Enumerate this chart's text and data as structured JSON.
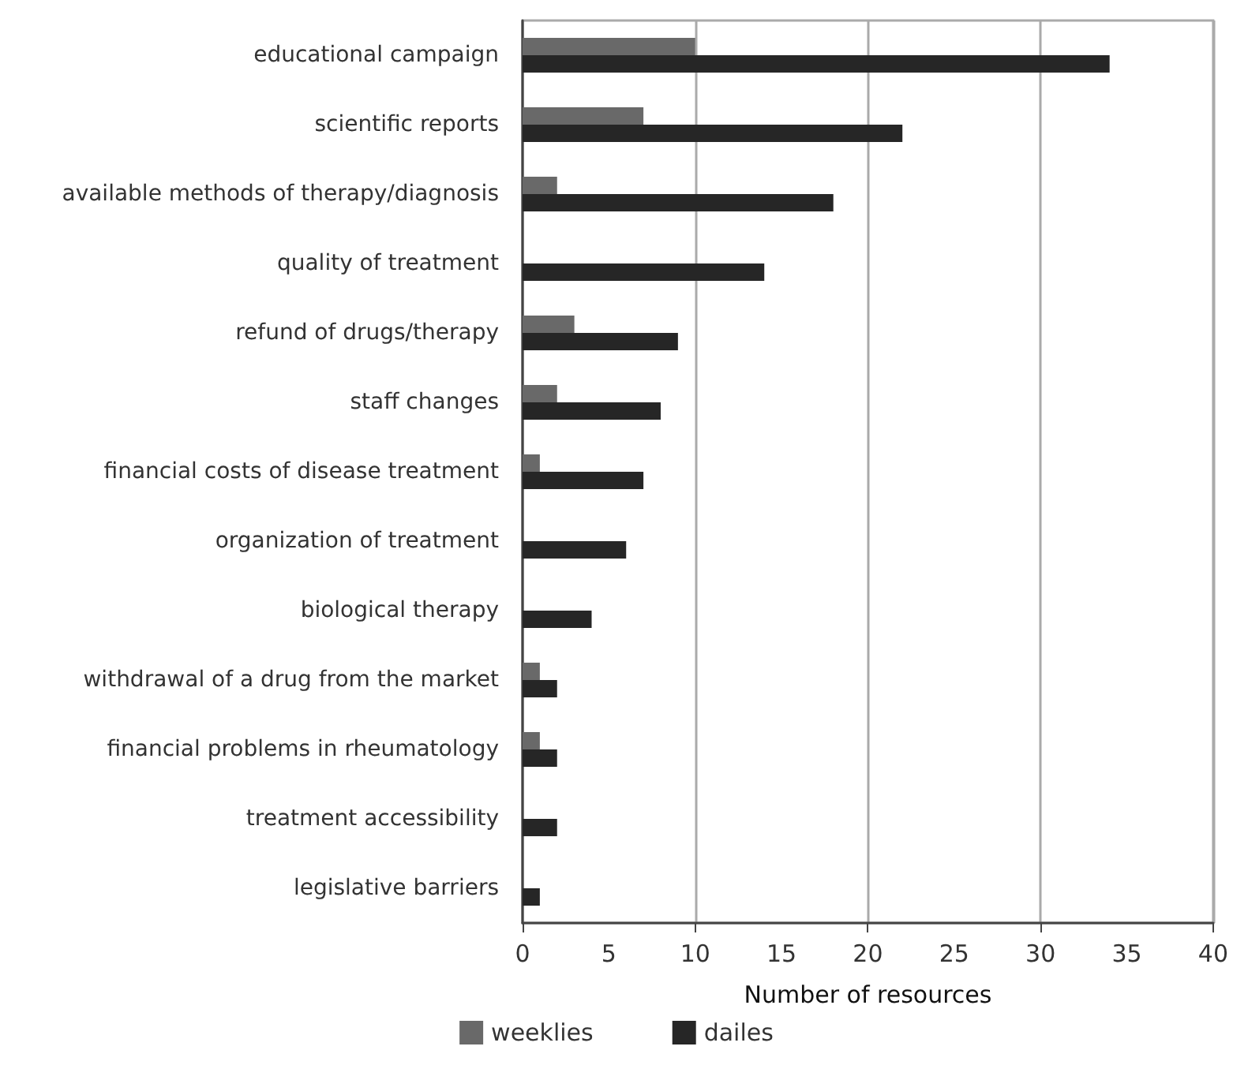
{
  "chart_data": {
    "type": "bar",
    "orientation": "horizontal",
    "xlabel": "Number of resources",
    "categories": [
      "educational campaign",
      "scientific reports",
      "available methods of therapy/diagnosis",
      "quality of treatment",
      "refund of drugs/therapy",
      "staff changes",
      "financial costs of disease treatment",
      "organization of treatment",
      "biological therapy",
      "withdrawal of a drug from the market",
      "financial problems in rheumatology",
      "treatment accessibility",
      "legislative barriers"
    ],
    "series": [
      {
        "name": "weeklies",
        "color": "#696969",
        "values": [
          10,
          7,
          2,
          null,
          3,
          2,
          1,
          null,
          null,
          1,
          1,
          null,
          null
        ]
      },
      {
        "name": "dailes",
        "color": "#262626",
        "values": [
          34,
          22,
          18,
          14,
          9,
          8,
          7,
          6,
          4,
          2,
          2,
          2,
          1
        ]
      }
    ],
    "xlim": [
      0,
      40
    ],
    "xticks": [
      0,
      5,
      10,
      15,
      20,
      25,
      30,
      35,
      40
    ],
    "grid": "x",
    "legend": "bottom"
  }
}
